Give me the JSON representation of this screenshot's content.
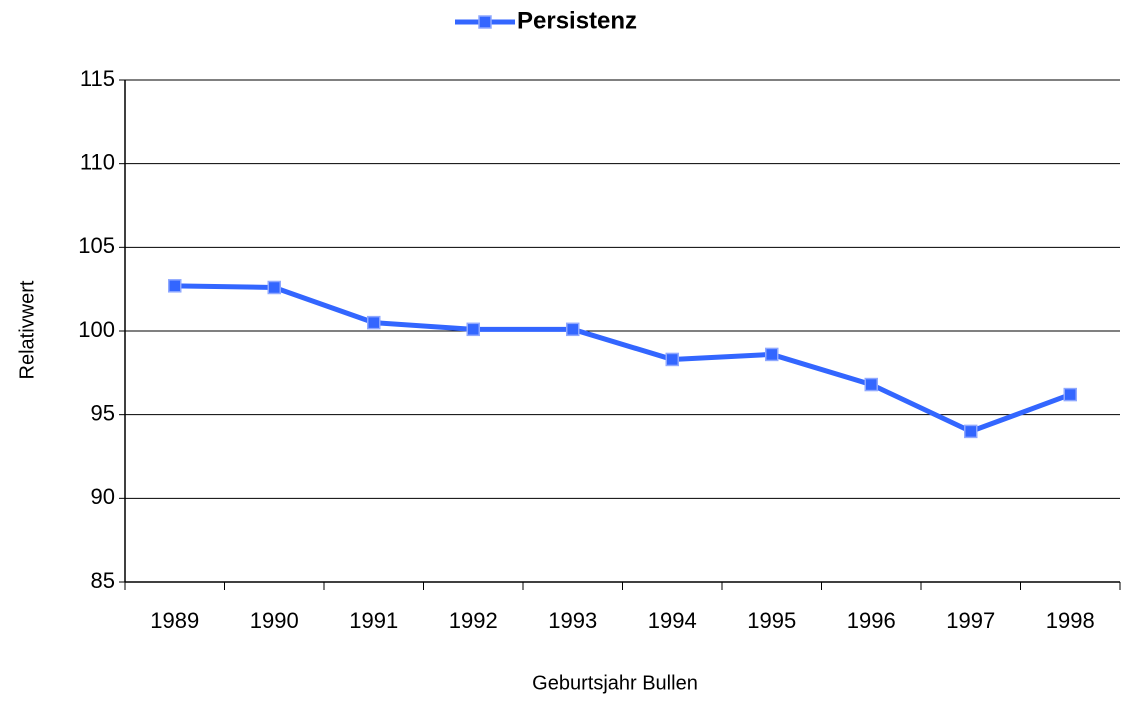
{
  "chart_data": {
    "type": "line",
    "x_label": "Geburtsjahr Bullen",
    "y_label": "Relativwert",
    "categories": [
      "1989",
      "1990",
      "1991",
      "1992",
      "1993",
      "1994",
      "1995",
      "1996",
      "1997",
      "1998"
    ],
    "series": [
      {
        "name": "Persistenz",
        "color": "#3366ff",
        "values": [
          102.7,
          102.6,
          100.5,
          100.1,
          100.1,
          98.3,
          98.6,
          96.8,
          94.0,
          96.2
        ]
      }
    ],
    "ylim": [
      85,
      115
    ],
    "yticks": [
      85,
      90,
      95,
      100,
      105,
      110,
      115
    ],
    "grid": true,
    "legend": "top"
  }
}
